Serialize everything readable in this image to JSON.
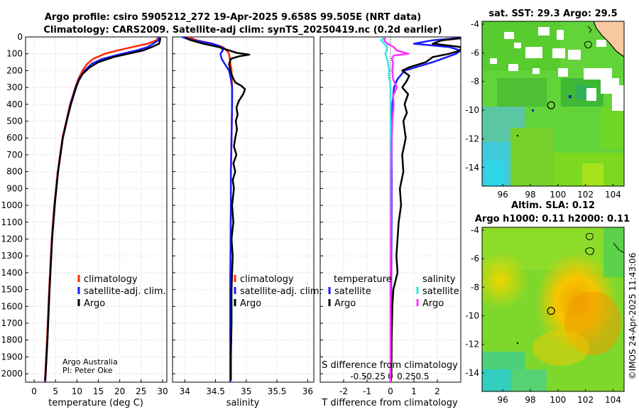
{
  "header": {
    "line1": "Argo profile: csiro 5905212_272 19-Apr-2025 9.658S 99.505E (NRT data)",
    "line2": "Climatology: CARS2009. Satellite-adj clim: synTS_20250419.nc (0.2d earlier)"
  },
  "credit": {
    "line1": "Argo Australia",
    "line2": "PI: Peter Oke"
  },
  "timestamp": "©IMOS 24-Apr-2025 11:43:06",
  "colors": {
    "climatology": "#ff2a00",
    "satellite": "#1a1aff",
    "argo": "#000000",
    "sat_salinity": "#33e6e6",
    "argo_salinity": "#ff33ff",
    "grid": "#d0d0d0"
  },
  "chart_data": [
    {
      "type": "line",
      "id": "temperature",
      "xlabel": "temperature (deg C)",
      "ylabel": "",
      "xlim": [
        -2,
        31
      ],
      "ylim": [
        2050,
        0
      ],
      "xticks": [
        "0",
        "5",
        "10",
        "15",
        "20",
        "25",
        "30"
      ],
      "xtick_values": [
        0,
        5,
        10,
        15,
        20,
        25,
        30
      ],
      "yticks": [
        "0",
        "100",
        "200",
        "300",
        "400",
        "500",
        "600",
        "700",
        "800",
        "900",
        "1000",
        "1100",
        "1200",
        "1300",
        "1400",
        "1500",
        "1600",
        "1700",
        "1800",
        "1900",
        "2000"
      ],
      "ytick_values": [
        0,
        100,
        200,
        300,
        400,
        500,
        600,
        700,
        800,
        900,
        1000,
        1100,
        1200,
        1300,
        1400,
        1500,
        1600,
        1700,
        1800,
        1900,
        2000
      ],
      "legend": [
        "climatology",
        "satellite-adj. clim.",
        "Argo"
      ],
      "series": [
        {
          "name": "climatology",
          "color_key": "climatology",
          "depth": [
            0,
            20,
            40,
            60,
            80,
            100,
            130,
            160,
            200,
            250,
            300,
            400,
            500,
            600,
            800,
            1000,
            1200,
            1500,
            1800,
            2000,
            2050
          ],
          "values": [
            29.0,
            28.6,
            26.5,
            23.0,
            19.5,
            16.5,
            13.8,
            12.4,
            11.3,
            10.3,
            9.6,
            8.4,
            7.5,
            6.6,
            5.5,
            4.7,
            4.1,
            3.5,
            3.0,
            2.6,
            2.5
          ]
        },
        {
          "name": "satellite-adj. clim.",
          "color_key": "satellite",
          "depth": [
            0,
            20,
            40,
            60,
            80,
            100,
            130,
            160,
            200,
            250,
            300,
            400,
            500,
            600,
            800,
            1000,
            1200,
            1500,
            1800,
            2000,
            2050
          ],
          "values": [
            29.3,
            29.0,
            27.8,
            26.5,
            24.0,
            20.5,
            16.0,
            13.4,
            11.8,
            10.5,
            9.7,
            8.5,
            7.6,
            6.7,
            5.6,
            4.8,
            4.2,
            3.6,
            3.1,
            2.7,
            2.6
          ]
        },
        {
          "name": "Argo",
          "color_key": "argo",
          "depth": [
            5,
            20,
            40,
            60,
            80,
            100,
            120,
            150,
            180,
            220,
            260,
            300,
            400,
            500,
            600,
            800,
            1000,
            1200,
            1500,
            1800,
            2000,
            2040
          ],
          "values": [
            29.5,
            29.4,
            29.2,
            27.5,
            25.5,
            22.0,
            18.5,
            15.0,
            13.0,
            11.3,
            10.4,
            9.8,
            8.6,
            7.6,
            6.7,
            5.6,
            4.8,
            4.2,
            3.6,
            3.1,
            2.7,
            2.6
          ]
        }
      ]
    },
    {
      "type": "line",
      "id": "salinity",
      "xlabel": "salinity",
      "ylabel": "",
      "xlim": [
        33.8,
        36.1
      ],
      "ylim": [
        2050,
        0
      ],
      "xticks": [
        "34",
        "34.5",
        "35",
        "35.5",
        "36"
      ],
      "xtick_values": [
        34,
        34.5,
        35,
        35.5,
        36
      ],
      "legend": [
        "climatology",
        "satellite-adj. clim.",
        "Argo"
      ],
      "series": [
        {
          "name": "climatology",
          "color_key": "climatology",
          "depth": [
            0,
            20,
            40,
            60,
            80,
            100,
            150,
            200,
            300,
            400,
            600,
            800,
            1000,
            1500,
            2050
          ],
          "values": [
            34.05,
            34.2,
            34.45,
            34.62,
            34.68,
            34.72,
            34.74,
            34.76,
            34.77,
            34.77,
            34.76,
            34.75,
            34.75,
            34.74,
            34.74
          ]
        },
        {
          "name": "satellite-adj. clim.",
          "color_key": "satellite",
          "depth": [
            0,
            20,
            40,
            60,
            80,
            100,
            130,
            160,
            200,
            250,
            300,
            400,
            600,
            800,
            1000,
            1500,
            2050
          ],
          "values": [
            33.95,
            34.15,
            34.45,
            34.6,
            34.62,
            34.58,
            34.6,
            34.65,
            34.72,
            34.75,
            34.77,
            34.77,
            34.76,
            34.75,
            34.75,
            34.74,
            34.74
          ]
        },
        {
          "name": "Argo",
          "color_key": "argo",
          "depth": [
            5,
            20,
            40,
            60,
            80,
            95,
            105,
            115,
            130,
            160,
            200,
            240,
            270,
            290,
            310,
            340,
            380,
            420,
            460,
            500,
            550,
            600,
            650,
            700,
            750,
            800,
            850,
            900,
            1000,
            1100,
            1200,
            1300,
            1400,
            1500,
            1700,
            1900,
            2000,
            2040
          ],
          "values": [
            34.0,
            34.1,
            34.3,
            34.55,
            34.72,
            34.85,
            35.05,
            34.88,
            34.75,
            34.72,
            34.74,
            34.78,
            34.82,
            34.92,
            34.98,
            34.95,
            34.88,
            34.84,
            34.86,
            34.83,
            34.85,
            34.82,
            34.8,
            34.84,
            34.79,
            34.82,
            34.78,
            34.8,
            34.77,
            34.79,
            34.76,
            34.78,
            34.77,
            34.76,
            34.76,
            34.75,
            34.75,
            34.75
          ]
        }
      ]
    },
    {
      "type": "line",
      "id": "difference",
      "xlabel": "T difference from climatology",
      "top_label": "S difference from climatology",
      "xlim": [
        -3,
        3
      ],
      "ylim": [
        2050,
        0
      ],
      "xticks": [
        "-2",
        "-1",
        "0",
        "1",
        "2"
      ],
      "xtick_values": [
        -2,
        -1,
        0,
        1,
        2
      ],
      "sticks": [
        "-0.5",
        "-0.25",
        "0",
        "0.25",
        "0.5"
      ],
      "stick_values": [
        -0.5,
        -0.25,
        0,
        0.25,
        0.5
      ],
      "legend_left_title": "temperature",
      "legend_right_title": "salinity",
      "legend_left": [
        "satellite",
        "Argo"
      ],
      "legend_right": [
        "satellite",
        "Argo"
      ],
      "series": [
        {
          "name": "T satellite",
          "color_key": "satellite",
          "depth": [
            5,
            20,
            40,
            60,
            80,
            100,
            150,
            200,
            250,
            300,
            400,
            600,
            1000,
            1500,
            2050
          ],
          "values": [
            3.0,
            1.8,
            1.0,
            2.5,
            3.0,
            2.8,
            1.8,
            0.6,
            0.3,
            0.15,
            0.08,
            0.05,
            0.05,
            0.03,
            0.02
          ]
        },
        {
          "name": "T Argo",
          "color_key": "argo",
          "depth": [
            5,
            20,
            40,
            60,
            80,
            100,
            120,
            150,
            180,
            200,
            230,
            260,
            300,
            340,
            400,
            450,
            500,
            600,
            700,
            800,
            900,
            1000,
            1100,
            1200,
            1300,
            1400,
            1500,
            1600,
            1800,
            2000,
            2040
          ],
          "values": [
            3.2,
            2.2,
            1.8,
            3.0,
            3.0,
            2.5,
            1.8,
            1.5,
            0.8,
            0.5,
            0.8,
            0.7,
            0.5,
            0.75,
            0.6,
            0.7,
            0.55,
            0.65,
            0.5,
            0.55,
            0.4,
            0.45,
            0.35,
            0.3,
            0.25,
            0.3,
            0.12,
            0.08,
            0.05,
            0.04,
            0.02
          ]
        },
        {
          "name": "S satellite",
          "color_key": "sat_salinity",
          "depth": [
            5,
            20,
            40,
            60,
            80,
            100,
            150,
            200,
            230,
            260,
            300,
            400,
            600,
            1000,
            1500,
            2050
          ],
          "values": [
            -0.1,
            -0.15,
            -0.1,
            -0.05,
            -0.06,
            -0.08,
            -0.04,
            -0.02,
            -0.03,
            -0.01,
            0.0,
            0.0,
            0.0,
            0.0,
            0.0,
            0.0
          ]
        },
        {
          "name": "S Argo",
          "color_key": "argo_salinity",
          "depth": [
            5,
            20,
            40,
            60,
            80,
            100,
            110,
            130,
            150,
            200,
            250,
            300,
            350,
            400,
            500,
            600,
            800,
            1000,
            1500,
            2050
          ],
          "values": [
            -0.08,
            -0.1,
            -0.05,
            0.05,
            0.1,
            0.28,
            0.05,
            0.02,
            0.04,
            0.03,
            0.04,
            0.1,
            0.04,
            0.05,
            0.03,
            0.02,
            0.01,
            0.01,
            0.0,
            0.0
          ]
        }
      ]
    },
    {
      "type": "heatmap",
      "id": "sst_map",
      "title": "sat. SST: 29.3 Argo: 29.5",
      "xticks": [
        "96",
        "98",
        "100",
        "102",
        "104"
      ],
      "xtick_values": [
        96,
        98,
        100,
        102,
        104
      ],
      "yticks": [
        "-4",
        "-6",
        "-8",
        "-10",
        "-12",
        "-14"
      ],
      "ytick_values": [
        -4,
        -6,
        -8,
        -10,
        -12,
        -14
      ],
      "xlim": [
        94.5,
        104.8
      ],
      "ylim": [
        -15.3,
        -3.8
      ],
      "float_position": [
        99.505,
        -9.658
      ]
    },
    {
      "type": "heatmap",
      "id": "sla_map",
      "title": "Altim. SLA: 0.12",
      "subtitle": "Argo h1000: 0.11 h2000: 0.11",
      "xticks": [
        "96",
        "98",
        "100",
        "102",
        "104"
      ],
      "xtick_values": [
        96,
        98,
        100,
        102,
        104
      ],
      "yticks": [
        "-4",
        "-6",
        "-8",
        "-10",
        "-12",
        "-14"
      ],
      "ytick_values": [
        -4,
        -6,
        -8,
        -10,
        -12,
        -14
      ],
      "xlim": [
        94.5,
        104.8
      ],
      "ylim": [
        -15.3,
        -3.8
      ],
      "float_position": [
        99.505,
        -9.658
      ]
    }
  ]
}
